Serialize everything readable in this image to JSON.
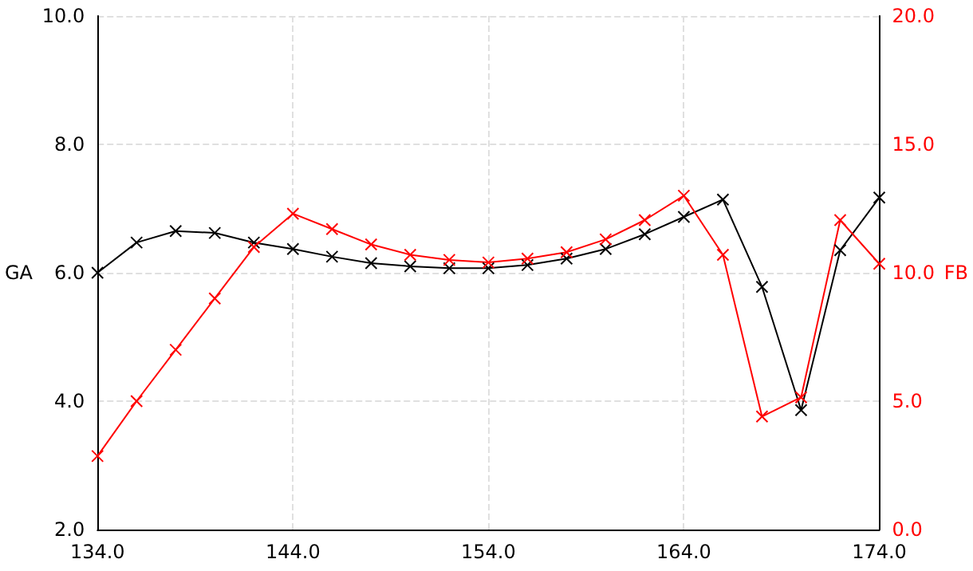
{
  "chart_data": {
    "type": "line",
    "ylabel": "GA",
    "y2label": "FB",
    "x": [
      134,
      136,
      138,
      140,
      142,
      144,
      146,
      148,
      150,
      152,
      154,
      156,
      158,
      160,
      162,
      164,
      166,
      168,
      170,
      172,
      174
    ],
    "series": [
      {
        "color": "#000000",
        "values": [
          6.0,
          6.47,
          6.65,
          6.62,
          6.47,
          6.37,
          6.25,
          6.15,
          6.1,
          6.07,
          6.07,
          6.12,
          6.22,
          6.37,
          6.6,
          6.87,
          7.14,
          5.78,
          3.86,
          6.35,
          7.17
        ]
      },
      {
        "color": "#ff0000",
        "axis": "y2",
        "values": [
          2.86,
          5.0,
          7.0,
          9.0,
          11.0,
          12.3,
          11.7,
          11.1,
          10.7,
          10.5,
          10.4,
          10.55,
          10.8,
          11.3,
          12.05,
          13.0,
          10.7,
          4.4,
          5.15,
          12.05,
          10.35
        ]
      }
    ],
    "xlim": [
      134,
      174
    ],
    "xticks": [
      {
        "value": 134,
        "label": "134.0"
      },
      {
        "value": 144,
        "label": "144.0"
      },
      {
        "value": 154,
        "label": "154.0"
      },
      {
        "value": 164,
        "label": "164.0"
      },
      {
        "value": 174,
        "label": "174.0"
      }
    ],
    "ylim": [
      2,
      10
    ],
    "yticks": [
      {
        "value": 2,
        "label": "2.0"
      },
      {
        "value": 4,
        "label": "4.0"
      },
      {
        "value": 6,
        "label": "6.0"
      },
      {
        "value": 8,
        "label": "8.0"
      },
      {
        "value": 10,
        "label": "10.0"
      }
    ],
    "y2lim": [
      0,
      20
    ],
    "y2ticks": [
      {
        "value": 0,
        "label": "0.0"
      },
      {
        "value": 5,
        "label": "5.0"
      },
      {
        "value": 10,
        "label": "10.0"
      },
      {
        "value": 15,
        "label": "15.0"
      },
      {
        "value": 20,
        "label": "20.0"
      }
    ],
    "grid": true,
    "marker": "cross",
    "line_style": "solid"
  }
}
